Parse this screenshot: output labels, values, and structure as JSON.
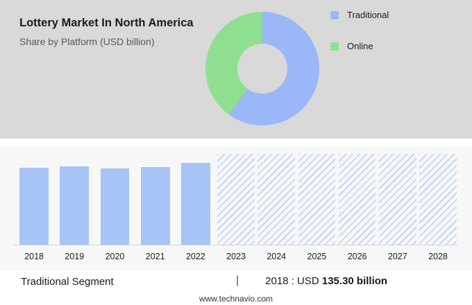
{
  "header": {
    "title": "Lottery Market In North America",
    "subtitle": "Share by Platform (USD billion)"
  },
  "legend": [
    {
      "label": "Traditional",
      "color": "#9ab8f7"
    },
    {
      "label": "Online",
      "color": "#8fdf90"
    }
  ],
  "donut": {
    "segments": [
      {
        "label": "Traditional",
        "pct": 60,
        "color": "#9ab8f7"
      },
      {
        "label": "Online",
        "pct": 40,
        "color": "#8fdf90"
      }
    ]
  },
  "chart_data": {
    "type": "bar",
    "title": "Lottery Market In North America — Traditional Segment (USD billion)",
    "categories": [
      "2018",
      "2019",
      "2020",
      "2021",
      "2022",
      "2023",
      "2024",
      "2025",
      "2026",
      "2027",
      "2028"
    ],
    "values": [
      135.3,
      138.5,
      133.8,
      136.9,
      143.6,
      null,
      null,
      null,
      null,
      null,
      null
    ],
    "forecast_categories": [
      "2023",
      "2024",
      "2025",
      "2026",
      "2027",
      "2028"
    ],
    "xlabel": "",
    "ylabel": "USD billion",
    "ylim": [
      0,
      160
    ],
    "grid": false,
    "legend_position": "top-right",
    "bar_color": "#a6c4f6",
    "forecast_style": "diagonal-hatch"
  },
  "footer": {
    "segment_label": "Traditional Segment",
    "separator": "|",
    "value_prefix": "2018 : USD",
    "value_bold": "135.30 billion",
    "website": "www.technavio.com"
  }
}
